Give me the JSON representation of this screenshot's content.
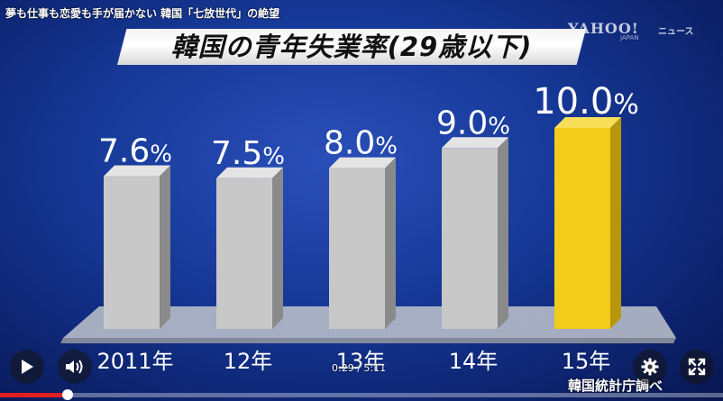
{
  "video": {
    "title": "夢も仕事も恋愛も手が届かない 韓国「七放世代」の絶望",
    "brand": "YAHOO!",
    "brand_sub": "JAPAN",
    "brand_news": "ニュース"
  },
  "chart_data": {
    "type": "bar",
    "title": "韓国の青年失業率(29歳以下)",
    "categories": [
      "2011年",
      "12年",
      "13年",
      "14年",
      "15年"
    ],
    "values": [
      7.6,
      7.5,
      8.0,
      9.0,
      10.0
    ],
    "value_labels": [
      "7.6",
      "7.5",
      "8.0",
      "9.0",
      "10.0"
    ],
    "unit": "%",
    "source": "韓国統計庁調べ",
    "colors": {
      "bar": "#c8c8c8",
      "bar_side": "#8a8a8a",
      "bar_top": "#e4e4e4",
      "highlight": "#f2cc1a",
      "highlight_side": "#b8960c",
      "highlight_top": "#f7df5a"
    },
    "highlight_index": 4
  },
  "player": {
    "time_current": "0:29",
    "time_separator": "/",
    "time_total": "5:11",
    "progress": 0.093,
    "icons": {
      "play": "play-icon",
      "volume": "volume-icon",
      "settings": "gear-icon",
      "fullscreen": "fullscreen-icon"
    }
  }
}
